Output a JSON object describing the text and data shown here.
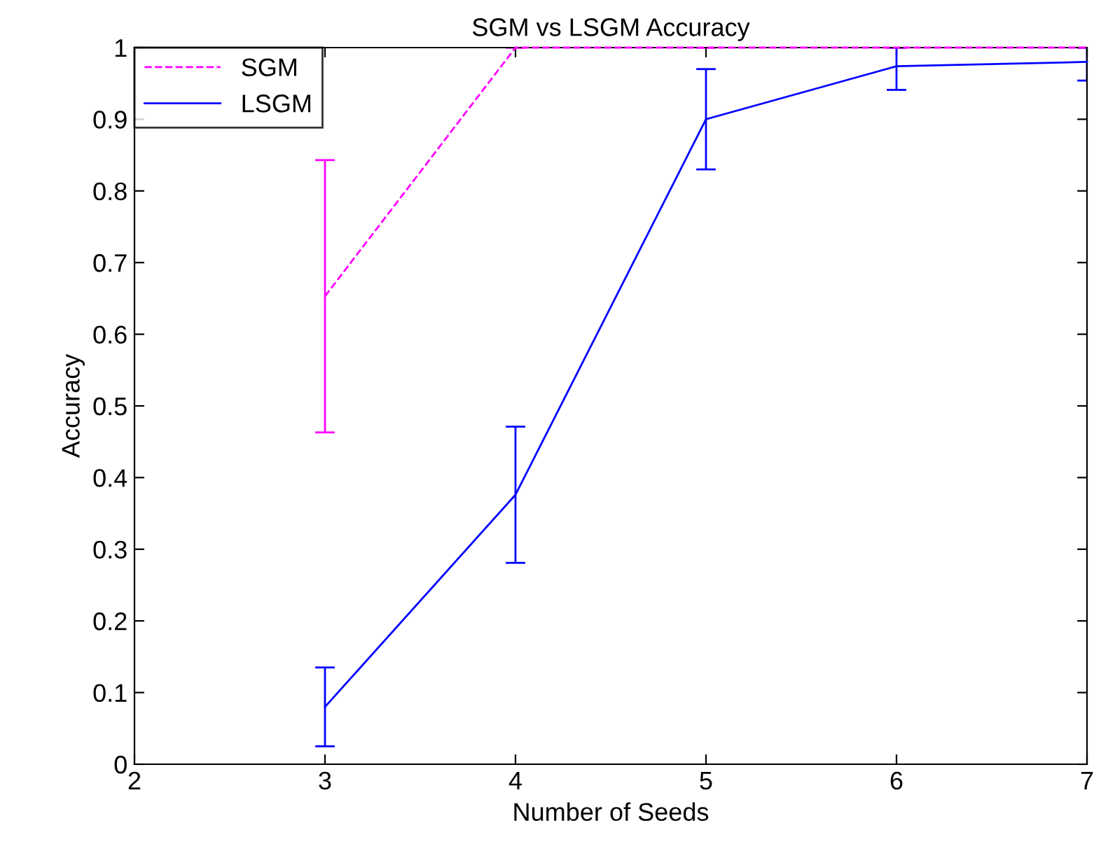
{
  "chart_data": {
    "type": "line",
    "title": "SGM vs LSGM Accuracy",
    "xlabel": "Number of Seeds",
    "ylabel": "Accuracy",
    "x": [
      3,
      4,
      5,
      6,
      7
    ],
    "series": [
      {
        "name": "SGM",
        "color": "#ff00ff",
        "line_style": "dashed",
        "values": [
          0.653,
          1,
          1,
          1,
          1
        ],
        "errors": [
          0.19,
          0,
          0,
          0,
          0
        ]
      },
      {
        "name": "LSGM",
        "color": "#0000ff",
        "line_style": "solid",
        "values": [
          0.08,
          0.376,
          0.9,
          0.974,
          0.98
        ],
        "errors": [
          0.055,
          0.095,
          0.07,
          [
            0.941,
            1.0
          ],
          [
            0.954,
            1.0
          ]
        ]
      }
    ],
    "xlim": [
      2,
      7
    ],
    "xticks": [
      2,
      3,
      4,
      5,
      6,
      7
    ],
    "ylim": [
      0,
      1
    ],
    "yticks": [
      0,
      0.1,
      0.2,
      0.3,
      0.4,
      0.5,
      0.6,
      0.7,
      0.8,
      0.9,
      1
    ],
    "grid": false,
    "legend": "top left",
    "marker": "none"
  }
}
